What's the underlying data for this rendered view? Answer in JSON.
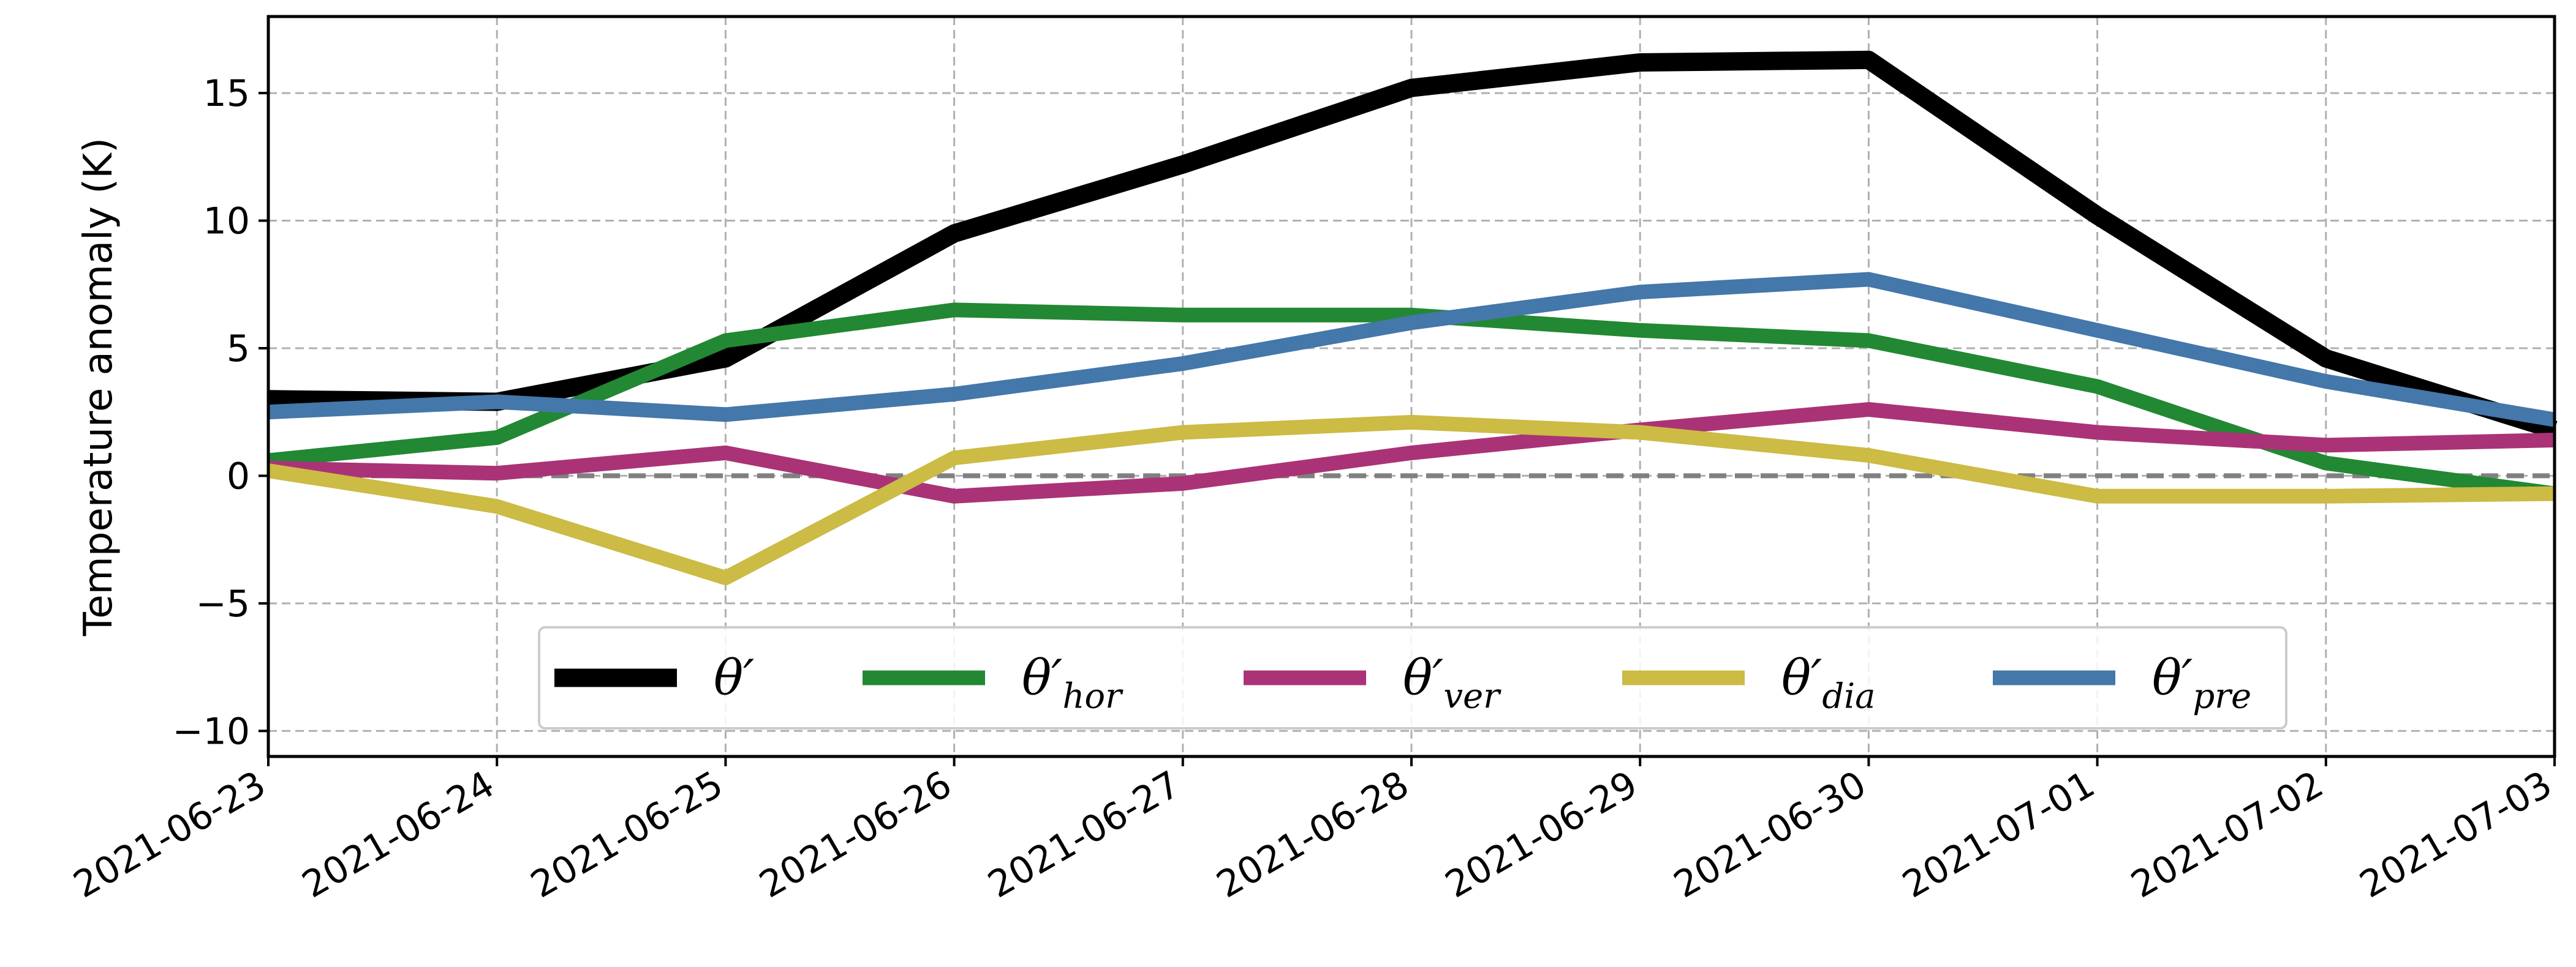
{
  "chart_data": {
    "type": "line",
    "title": "",
    "xlabel": "",
    "ylabel": "Temperature anomaly (K)",
    "x": [
      "2021-06-23",
      "2021-06-24",
      "2021-06-25",
      "2021-06-26",
      "2021-06-27",
      "2021-06-28",
      "2021-06-29",
      "2021-06-30",
      "2021-07-01",
      "2021-07-02",
      "2021-07-03"
    ],
    "xlim": [
      "2021-06-23",
      "2021-07-03"
    ],
    "ylim": [
      -11,
      18
    ],
    "yticks": [
      -10,
      -5,
      0,
      5,
      10,
      15
    ],
    "ytick_labels": [
      "−10",
      "−5",
      "0",
      "5",
      "10",
      "15"
    ],
    "grid": true,
    "zero_line": true,
    "legend_position": "lower center",
    "series": [
      {
        "name": "θ′",
        "sub": "",
        "color": "#000000",
        "values": [
          3.0,
          2.9,
          4.6,
          9.5,
          12.2,
          15.2,
          16.2,
          16.3,
          10.2,
          4.6,
          1.8
        ]
      },
      {
        "name": "θ′",
        "sub": "hor",
        "color": "#228833",
        "values": [
          0.6,
          1.5,
          5.3,
          6.5,
          6.3,
          6.3,
          5.7,
          5.3,
          3.5,
          0.5,
          -0.7
        ]
      },
      {
        "name": "θ′",
        "sub": "ver",
        "color": "#AA3377",
        "values": [
          0.3,
          0.1,
          0.9,
          -0.8,
          -0.3,
          0.9,
          1.8,
          2.6,
          1.7,
          1.2,
          1.4
        ]
      },
      {
        "name": "θ′",
        "sub": "dia",
        "color": "#CCBB44",
        "values": [
          0.2,
          -1.2,
          -4.0,
          0.7,
          1.7,
          2.1,
          1.7,
          0.8,
          -0.8,
          -0.8,
          -0.7
        ]
      },
      {
        "name": "θ′",
        "sub": "pre",
        "color": "#4477AA",
        "values": [
          2.5,
          2.9,
          2.4,
          3.2,
          4.4,
          6.0,
          7.2,
          7.7,
          5.7,
          3.7,
          2.2
        ]
      }
    ]
  }
}
